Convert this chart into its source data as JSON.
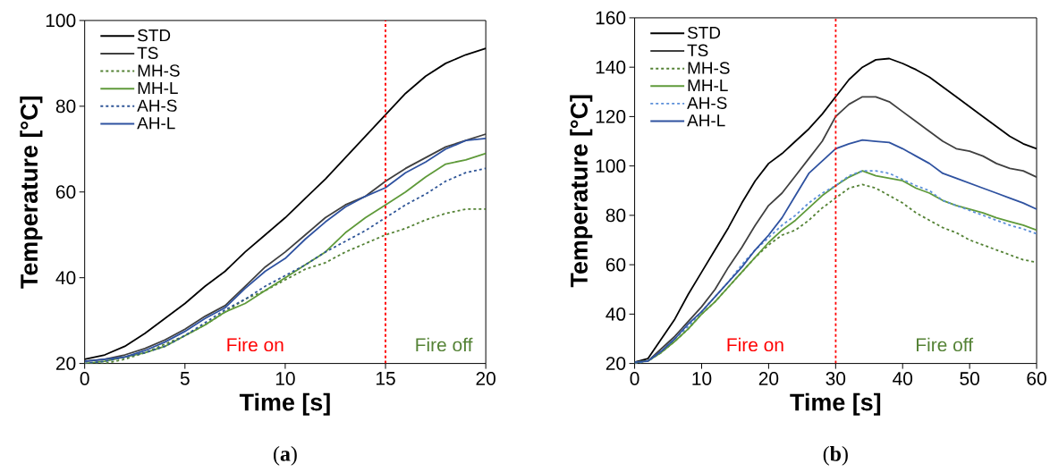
{
  "chart_data": [
    {
      "type": "line",
      "title": "(**a**)",
      "xlabel": "Time [s]",
      "ylabel": "Temperature [°C]",
      "x": [
        0,
        1,
        2,
        3,
        4,
        5,
        6,
        7,
        8,
        9,
        10,
        11,
        12,
        13,
        14,
        15,
        16,
        17,
        18,
        19,
        20
      ],
      "series": [
        {
          "name": "STD",
          "color": "#000000",
          "line_style": "solid",
          "values": [
            21,
            22,
            24,
            27,
            30.5,
            34,
            38,
            41.5,
            46,
            50,
            54,
            58.5,
            63,
            68,
            73,
            78,
            83,
            87,
            90,
            92,
            93.5
          ]
        },
        {
          "name": "TS",
          "color": "#404040",
          "line_style": "solid",
          "values": [
            20.5,
            21,
            22,
            23.5,
            25.5,
            28,
            31,
            33.5,
            38,
            42.5,
            46,
            50,
            54,
            57,
            59,
            62.5,
            65.5,
            68,
            70.5,
            72,
            73.5
          ]
        },
        {
          "name": "MH-S",
          "color": "#548235",
          "line_style": "dashed",
          "values": [
            20,
            20,
            21,
            22.5,
            24.5,
            26.5,
            29,
            32,
            35,
            37,
            39.5,
            42,
            43.5,
            46,
            48,
            50,
            51.5,
            53.5,
            55,
            56,
            56
          ]
        },
        {
          "name": "MH-L",
          "color": "#5f9a3a",
          "line_style": "solid",
          "values": [
            20,
            20.5,
            21.5,
            22.5,
            24,
            26.5,
            29,
            32,
            34,
            37,
            40,
            43,
            46,
            50.5,
            54,
            57,
            60,
            63.5,
            66.5,
            67.5,
            69
          ]
        },
        {
          "name": "AH-S",
          "color": "#2f5597",
          "line_style": "dashed",
          "values": [
            20,
            20.5,
            21.5,
            22.5,
            24,
            26.5,
            29.5,
            32.5,
            35,
            38,
            40.5,
            43,
            46,
            48.5,
            51,
            54,
            57,
            59.5,
            62.5,
            64.5,
            65.5
          ]
        },
        {
          "name": "AH-L",
          "color": "#2f52a0",
          "line_style": "solid",
          "values": [
            20.5,
            21,
            21.5,
            23,
            25,
            27.5,
            30.5,
            33,
            37.5,
            41.5,
            44.5,
            49,
            53,
            56.5,
            59,
            61,
            64.5,
            67,
            70,
            72,
            72.5
          ]
        }
      ],
      "xlim": [
        0,
        20
      ],
      "ylim": [
        20,
        100
      ],
      "xticks": [
        0,
        5,
        10,
        15,
        20
      ],
      "yticks": [
        20,
        40,
        60,
        80,
        100
      ],
      "ref_lines": [
        {
          "axis": "x",
          "value": 15,
          "color": "#ff0000",
          "line_style": "dashed"
        }
      ],
      "annotations": [
        "Fire on",
        "Fire off"
      ],
      "legend": "top left",
      "marker": "none"
    },
    {
      "type": "line",
      "title": "(**b**)",
      "xlabel": "Time [s]",
      "ylabel": "Temperature [°C]",
      "x": [
        0,
        2,
        4,
        6,
        8,
        10,
        12,
        14,
        16,
        18,
        20,
        22,
        24,
        26,
        28,
        30,
        32,
        34,
        36,
        38,
        40,
        42,
        44,
        46,
        48,
        50,
        52,
        54,
        56,
        58,
        60
      ],
      "series": [
        {
          "name": "STD",
          "color": "#000000",
          "line_style": "solid",
          "values": [
            20.5,
            22,
            30,
            38,
            48,
            57,
            66,
            75,
            85,
            94,
            101,
            105,
            110,
            115,
            121,
            128,
            135,
            140,
            143,
            143.5,
            141.5,
            139,
            136,
            132,
            128,
            124,
            120,
            116,
            112,
            109,
            107
          ]
        },
        {
          "name": "TS",
          "color": "#404040",
          "line_style": "solid",
          "values": [
            20.5,
            21,
            26,
            31,
            37,
            43,
            50,
            59,
            67,
            76,
            84,
            89,
            96,
            103,
            110,
            120,
            125,
            128,
            128,
            126,
            122,
            118,
            114,
            110,
            107,
            106,
            104,
            101,
            99,
            98,
            95.5
          ]
        },
        {
          "name": "MH-S",
          "color": "#548235",
          "line_style": "dashed",
          "values": [
            20,
            21,
            24.5,
            29,
            34,
            40,
            45,
            51,
            57,
            63,
            68,
            72,
            74,
            78,
            83,
            87,
            91,
            92.5,
            91,
            88,
            85,
            81,
            78,
            75,
            73,
            70,
            68,
            66,
            64,
            62,
            61
          ]
        },
        {
          "name": "MH-L",
          "color": "#5f9a3a",
          "line_style": "solid",
          "values": [
            20.5,
            21,
            24.5,
            29,
            34,
            40,
            45,
            51,
            57,
            63,
            69,
            74,
            78,
            83,
            88,
            92,
            95.5,
            98,
            96,
            95,
            94,
            91,
            89,
            86,
            84,
            82.5,
            81,
            79,
            77.5,
            76,
            74
          ]
        },
        {
          "name": "AH-S",
          "color": "#5b8fd9",
          "line_style": "dashed",
          "values": [
            20,
            21,
            25,
            30,
            35,
            41,
            47,
            53,
            60,
            66,
            71,
            76,
            80,
            85,
            89,
            92,
            96,
            98,
            98,
            97,
            94.5,
            92,
            90,
            86,
            84,
            82,
            80,
            78,
            76,
            74.5,
            72.5
          ]
        },
        {
          "name": "AH-L",
          "color": "#2f52a0",
          "line_style": "solid",
          "values": [
            20.5,
            21,
            25,
            30,
            36,
            41,
            47,
            53,
            59,
            66,
            72,
            79,
            88,
            97,
            102,
            107,
            109,
            110.5,
            110,
            109.5,
            107,
            104,
            101,
            97,
            95,
            93,
            91,
            89,
            87,
            85,
            82.5
          ]
        }
      ],
      "xlim": [
        0,
        60
      ],
      "ylim": [
        20,
        160
      ],
      "xticks": [
        0,
        10,
        20,
        30,
        40,
        50,
        60
      ],
      "yticks": [
        20,
        40,
        60,
        80,
        100,
        120,
        140,
        160
      ],
      "ref_lines": [
        {
          "axis": "x",
          "value": 30,
          "color": "#ff0000",
          "line_style": "dashed"
        }
      ],
      "annotations": [
        "Fire on",
        "Fire off"
      ],
      "legend": "top left",
      "marker": "none"
    }
  ]
}
